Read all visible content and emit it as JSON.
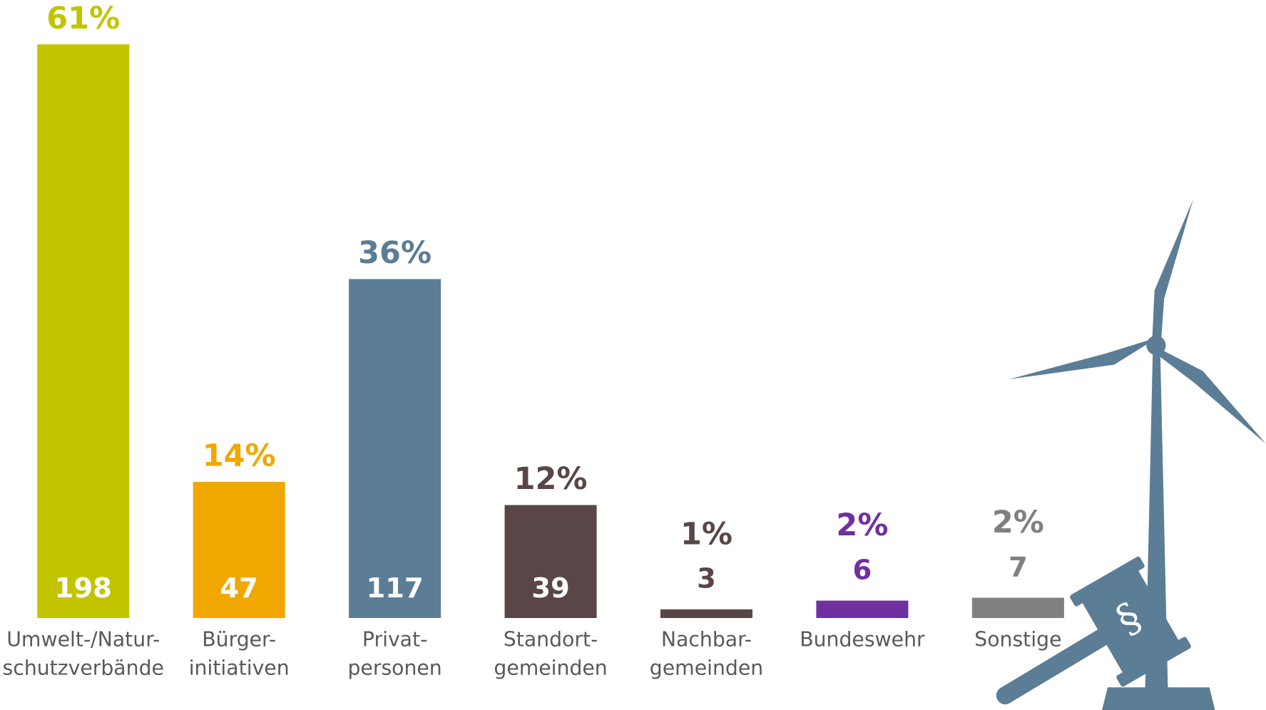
{
  "chart_data": {
    "type": "bar",
    "categories": [
      [
        "Umwelt-/Natur-",
        "schutzverbände"
      ],
      [
        "Bürger-",
        "initiativen"
      ],
      [
        "Privat-",
        "personen"
      ],
      [
        "Standort-",
        "gemeinden"
      ],
      [
        "Nachbar-",
        "gemeinden"
      ],
      [
        "Bundeswehr"
      ],
      [
        "Sonstige"
      ]
    ],
    "values": [
      198,
      47,
      117,
      39,
      3,
      6,
      7
    ],
    "colors": [
      "#c2c400",
      "#f0a800",
      "#5b7d95",
      "#5a4646",
      "#5a4646",
      "#7030a0",
      "#808080"
    ],
    "shares": {
      "values": [
        61,
        14,
        36,
        12,
        1,
        2,
        2
      ],
      "value_labels": [
        "61%",
        "14%",
        "36%",
        "12%",
        "1%",
        "2%",
        "2%"
      ]
    }
  }
}
